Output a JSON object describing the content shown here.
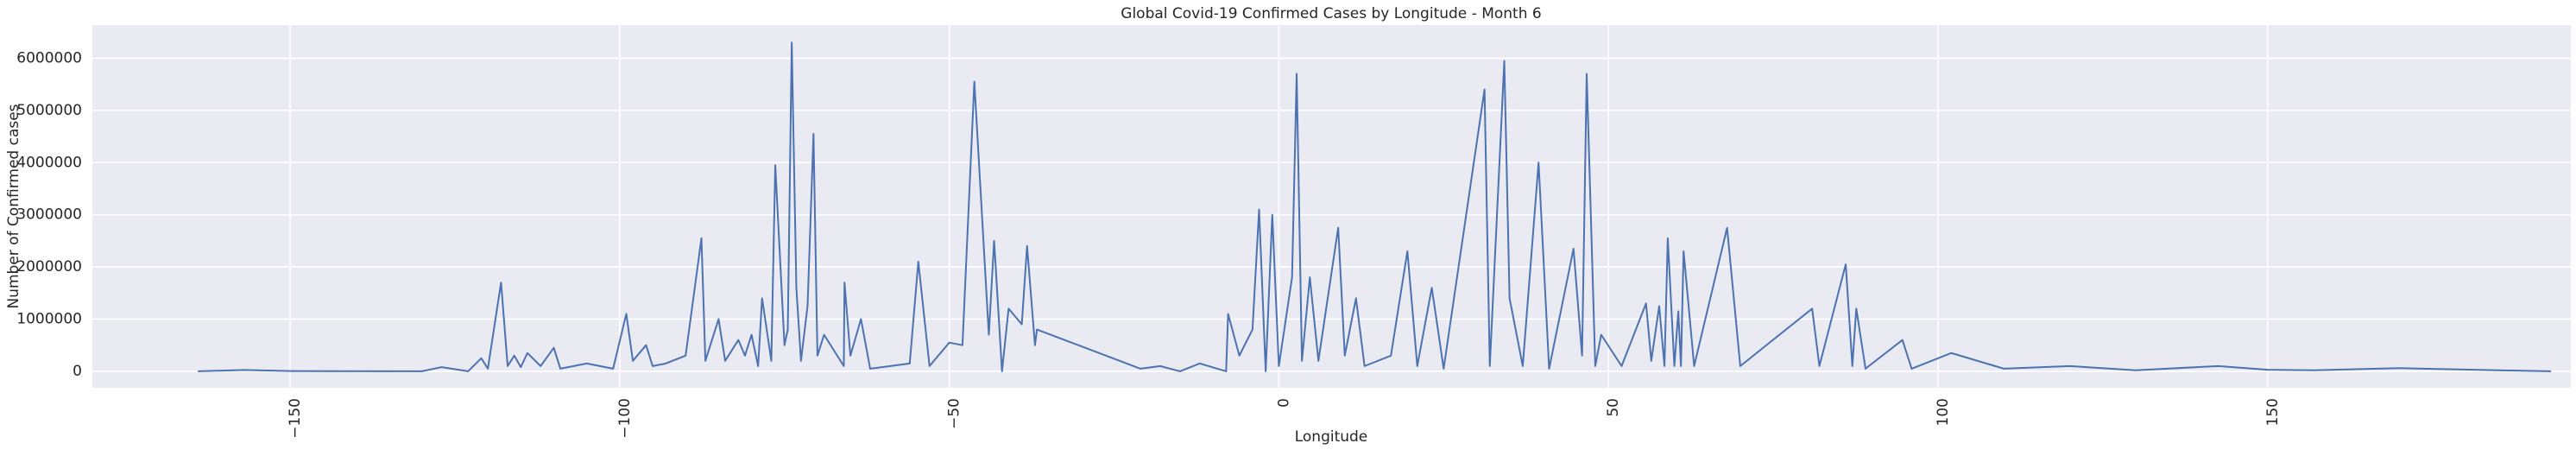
{
  "chart_data": {
    "type": "line",
    "title": "Global Covid-19 Confirmed Cases by Longitude - Month 6",
    "x_label": "Longitude",
    "y_label": "Number of Confirmed cases",
    "x": [
      -164,
      -157,
      -150,
      -130,
      -127,
      -123,
      -121,
      -120,
      -118,
      -117,
      -116,
      -115,
      -114,
      -112,
      -110,
      -109,
      -105,
      -101,
      -99,
      -98,
      -96,
      -95,
      -93,
      -90,
      -87.6,
      -87,
      -85,
      -84,
      -82,
      -81,
      -80,
      -79,
      -78.4,
      -77,
      -76.4,
      -75,
      -74.5,
      -73.9,
      -73.2,
      -72.5,
      -71.5,
      -70.6,
      -70,
      -69,
      -66,
      -65.9,
      -65,
      -63.4,
      -62,
      -56,
      -54.7,
      -53,
      -50,
      -48,
      -46.2,
      -44.5,
      -44,
      -43.2,
      -42,
      -41,
      -39,
      -38.2,
      -37,
      -36.7,
      -21,
      -18,
      -15,
      -12,
      -8,
      -7.7,
      -6,
      -4,
      -3,
      -2,
      -1,
      0,
      2,
      2.7,
      3.5,
      4.7,
      6,
      9,
      10,
      11.7,
      13,
      17,
      19.5,
      21,
      23.2,
      25,
      31.2,
      32,
      34.2,
      35,
      37,
      39.4,
      41,
      44.7,
      46,
      46.7,
      48,
      48.9,
      52,
      55.7,
      56.5,
      57.7,
      58.5,
      59,
      60,
      60.6,
      61,
      61.4,
      63,
      68,
      70,
      80.9,
      82,
      86,
      87,
      87.6,
      89,
      94.6,
      96,
      102,
      110,
      120,
      130,
      142.5,
      150,
      157,
      170,
      185,
      193
    ],
    "series": [
      {
        "color": "#4c72b0",
        "values": [
          0,
          25000,
          5000,
          0,
          80000,
          0,
          250000,
          50000,
          1700000,
          100000,
          300000,
          80000,
          350000,
          100000,
          450000,
          50000,
          150000,
          50000,
          1100000,
          200000,
          500000,
          100000,
          150000,
          300000,
          2550000,
          200000,
          1000000,
          200000,
          600000,
          300000,
          700000,
          100000,
          1400000,
          200000,
          3950000,
          500000,
          800000,
          6300000,
          1600000,
          200000,
          1250000,
          4550000,
          300000,
          700000,
          100000,
          1700000,
          300000,
          1000000,
          50000,
          150000,
          2100000,
          100000,
          550000,
          500000,
          5550000,
          1800000,
          700000,
          2500000,
          0,
          1200000,
          900000,
          2400000,
          500000,
          800000,
          50000,
          100000,
          0,
          150000,
          0,
          1100000,
          300000,
          800000,
          3100000,
          0,
          3000000,
          100000,
          1800000,
          5700000,
          200000,
          1800000,
          200000,
          2750000,
          300000,
          1400000,
          100000,
          300000,
          2300000,
          100000,
          1600000,
          50000,
          5400000,
          100000,
          5950000,
          1400000,
          100000,
          4000000,
          50000,
          2350000,
          300000,
          5700000,
          100000,
          700000,
          100000,
          1300000,
          200000,
          1250000,
          100000,
          2550000,
          100000,
          1150000,
          100000,
          2300000,
          100000,
          2750000,
          100000,
          1200000,
          100000,
          2050000,
          100000,
          1200000,
          50000,
          600000,
          50000,
          350000,
          50000,
          100000,
          20000,
          100000,
          30000,
          20000,
          60000,
          20000,
          0
        ]
      }
    ],
    "xlim": [
      -180,
      196
    ],
    "xticks": [
      {
        "value": -150,
        "label": "−150"
      },
      {
        "value": -100,
        "label": "−100"
      },
      {
        "value": -50,
        "label": "−50"
      },
      0,
      50,
      100,
      150
    ],
    "ylim": [
      -316000,
      6636000
    ],
    "yticks": [
      0,
      1000000,
      2000000,
      3000000,
      4000000,
      5000000,
      6000000
    ],
    "grid": true
  }
}
